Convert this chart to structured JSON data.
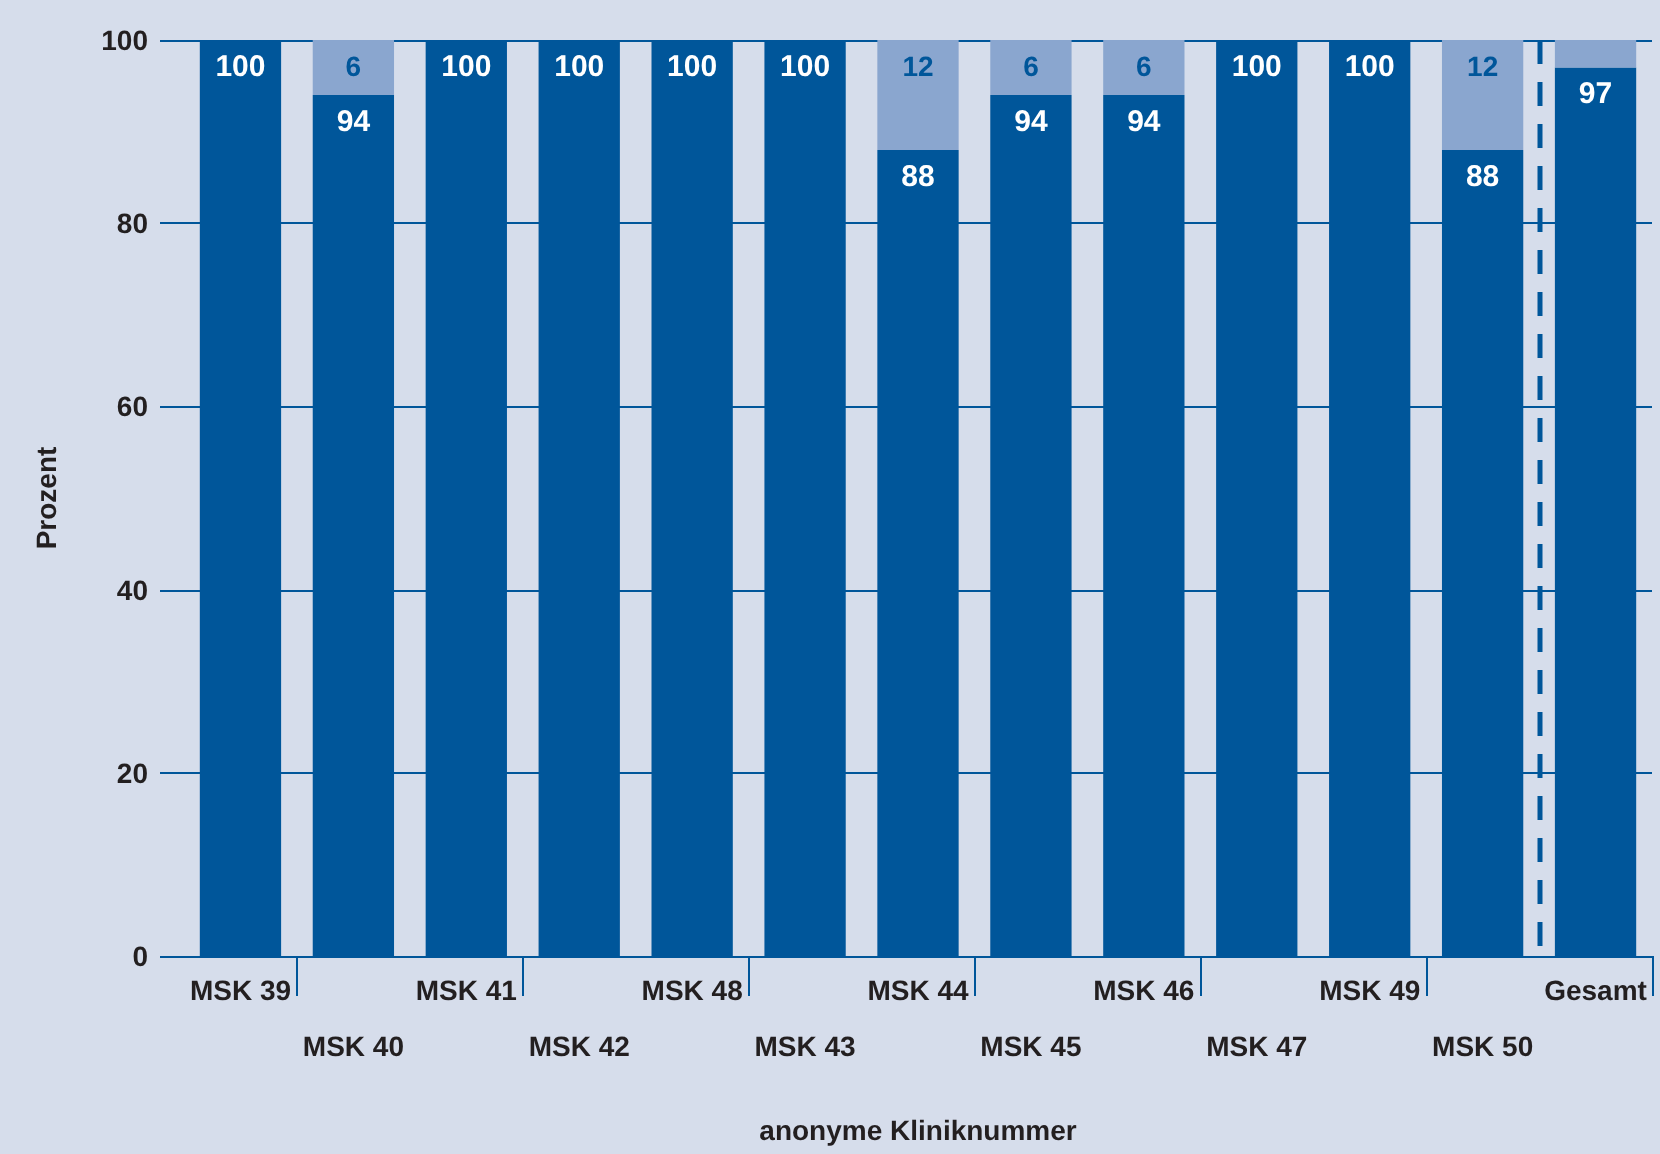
{
  "chart_data": {
    "type": "bar",
    "stacked": true,
    "xlabel": "anonyme Kliniknummer",
    "ylabel": "Prozent",
    "categories": [
      "MSK 39",
      "MSK 40",
      "MSK 41",
      "MSK 42",
      "MSK 48",
      "MSK 43",
      "MSK 44",
      "MSK 45",
      "MSK 46",
      "MSK 47",
      "MSK 49",
      "MSK 50",
      "Gesamt"
    ],
    "series": [
      {
        "color": "#00569a",
        "values": [
          100,
          94,
          100,
          100,
          100,
          100,
          88,
          94,
          94,
          100,
          100,
          88,
          97
        ],
        "value_labels": [
          "100",
          "94",
          "100",
          "100",
          "100",
          "100",
          "88",
          "94",
          "94",
          "100",
          "100",
          "88",
          "97"
        ]
      },
      {
        "color": "#8aa6cf",
        "values": [
          0,
          6,
          0,
          0,
          0,
          0,
          12,
          6,
          6,
          0,
          0,
          12,
          3
        ],
        "value_labels": [
          null,
          "6",
          null,
          null,
          null,
          null,
          "12",
          "6",
          "6",
          null,
          null,
          "12",
          null
        ]
      }
    ],
    "ylim": [
      0,
      100
    ],
    "yticks": [
      0,
      20,
      40,
      60,
      80,
      100
    ],
    "grid": "y"
  }
}
